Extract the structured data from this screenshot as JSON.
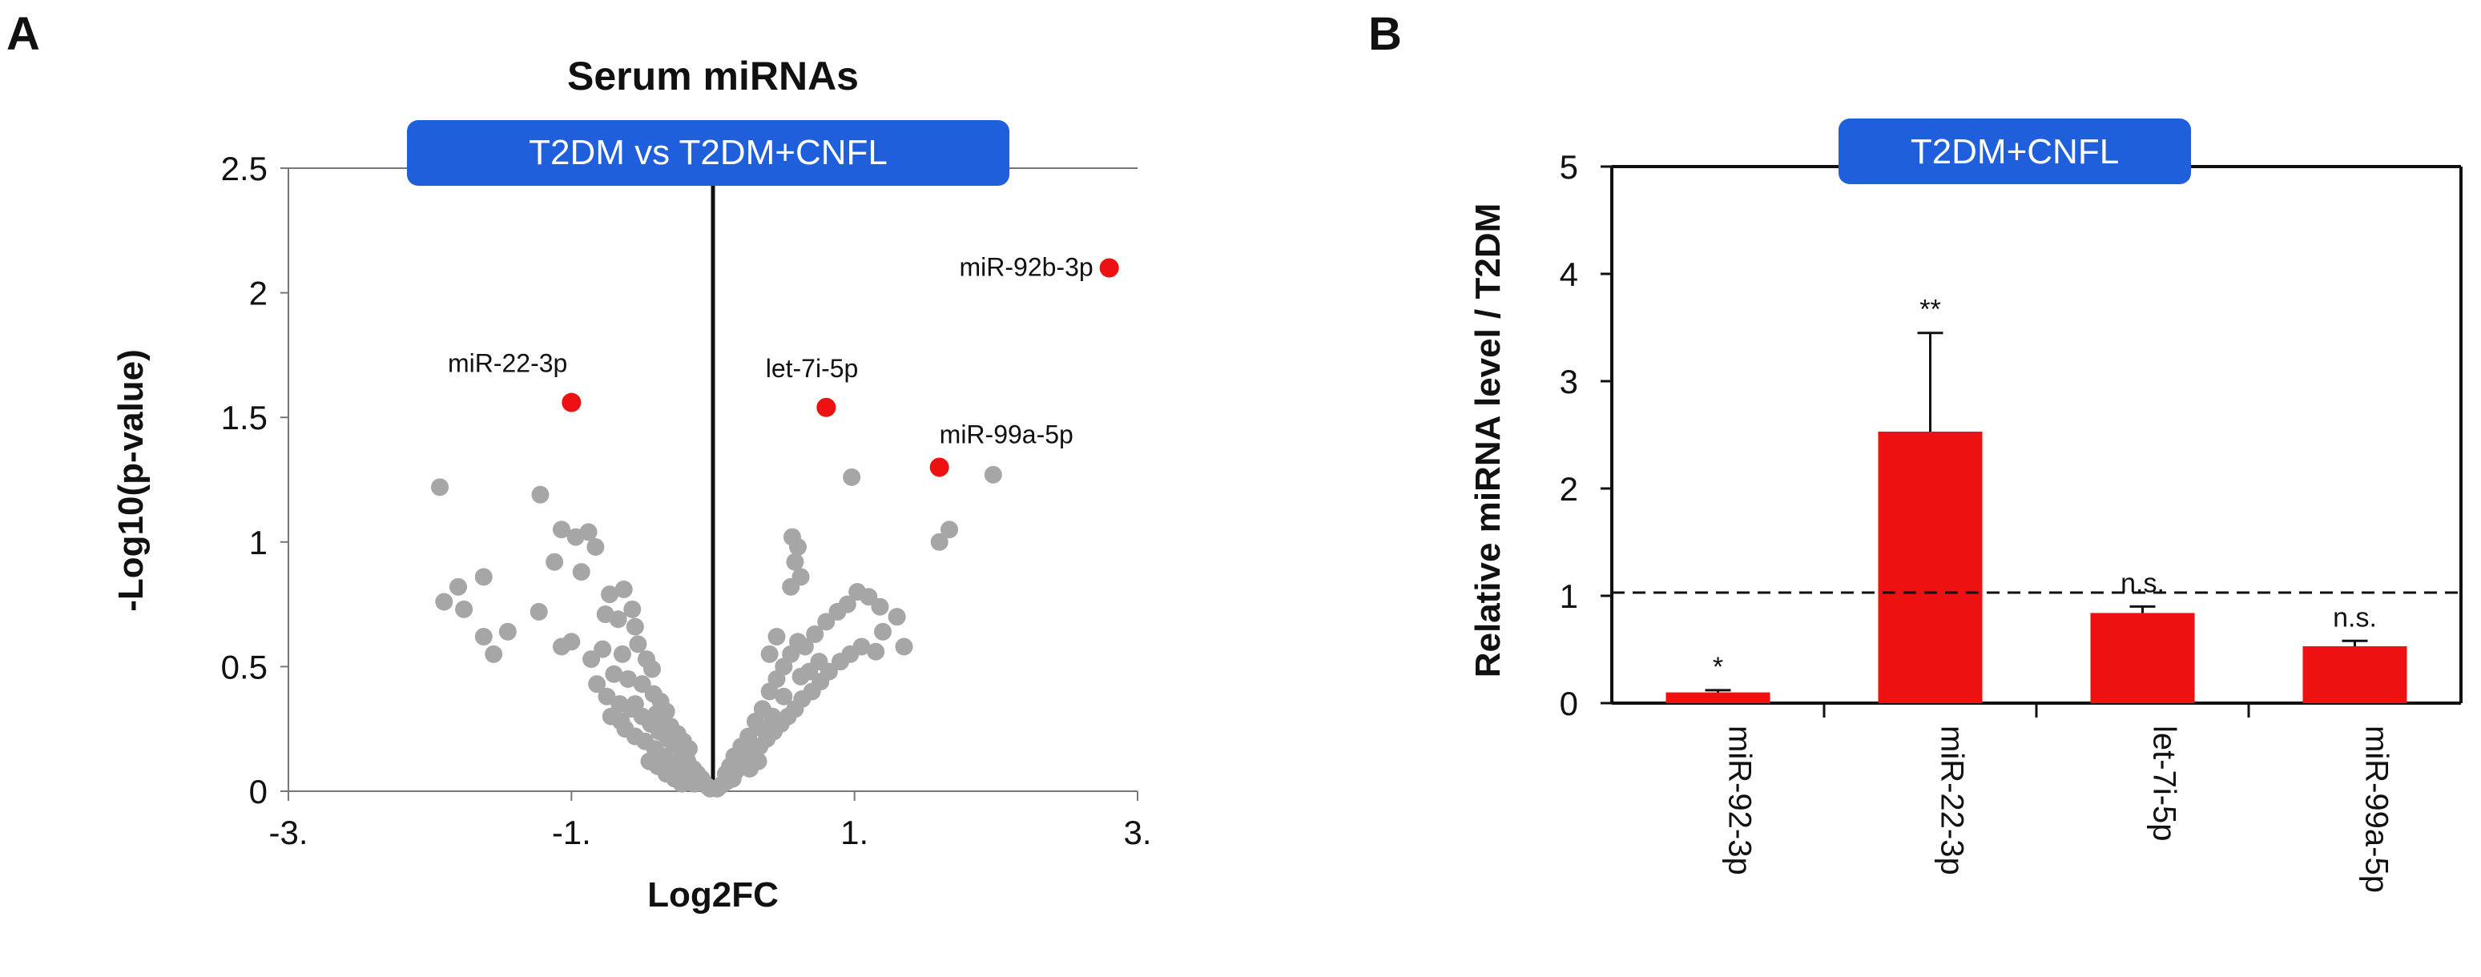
{
  "panel_a_label": "A",
  "panel_b_label": "B",
  "chart_data": [
    {
      "type": "scatter",
      "title": "Serum miRNAs",
      "badge": "T2DM vs T2DM+CNFL",
      "xlabel": "Log2FC",
      "ylabel": "-Log10(p-value)",
      "xlim": [
        -3,
        3
      ],
      "ylim": [
        0,
        2.5
      ],
      "xticks": [
        {
          "value": -3,
          "label": "-3."
        },
        {
          "value": -1,
          "label": "-1."
        },
        {
          "value": 1,
          "label": "1."
        },
        {
          "value": 3,
          "label": "3."
        }
      ],
      "yticks": [
        {
          "value": 0,
          "label": "0"
        },
        {
          "value": 0.5,
          "label": "0.5"
        },
        {
          "value": 1,
          "label": "1"
        },
        {
          "value": 1.5,
          "label": "1.5"
        },
        {
          "value": 2,
          "label": "2"
        },
        {
          "value": 2.5,
          "label": "2.5"
        }
      ],
      "highlight_color": "#ee1111",
      "point_color": "#a6a6a6",
      "highlighted": [
        {
          "name": "miR-92b-3p",
          "x": 2.8,
          "y": 2.1
        },
        {
          "name": "miR-22-3p",
          "x": -1.0,
          "y": 1.56
        },
        {
          "name": "let-7i-5p",
          "x": 0.8,
          "y": 1.54
        },
        {
          "name": "miR-99a-5p",
          "x": 1.6,
          "y": 1.3
        }
      ],
      "points": [
        [
          -1.93,
          1.22
        ],
        [
          -1.22,
          1.19
        ],
        [
          -1.07,
          1.05
        ],
        [
          -0.97,
          1.02
        ],
        [
          -0.88,
          1.04
        ],
        [
          -0.83,
          0.98
        ],
        [
          -1.9,
          0.76
        ],
        [
          -1.76,
          0.73
        ],
        [
          -1.8,
          0.82
        ],
        [
          -1.62,
          0.86
        ],
        [
          -1.12,
          0.92
        ],
        [
          -0.93,
          0.88
        ],
        [
          -0.73,
          0.79
        ],
        [
          -0.63,
          0.81
        ],
        [
          -0.57,
          0.73
        ],
        [
          -0.67,
          0.69
        ],
        [
          -0.76,
          0.71
        ],
        [
          -0.55,
          0.66
        ],
        [
          -1.23,
          0.72
        ],
        [
          -1.45,
          0.64
        ],
        [
          -1.62,
          0.62
        ],
        [
          -1.55,
          0.55
        ],
        [
          -1.0,
          0.6
        ],
        [
          -1.07,
          0.58
        ],
        [
          -0.86,
          0.53
        ],
        [
          -0.78,
          0.57
        ],
        [
          -0.64,
          0.55
        ],
        [
          -0.53,
          0.59
        ],
        [
          -0.47,
          0.53
        ],
        [
          -0.43,
          0.49
        ],
        [
          -0.7,
          0.47
        ],
        [
          -0.6,
          0.45
        ],
        [
          -0.5,
          0.43
        ],
        [
          -0.42,
          0.39
        ],
        [
          -0.37,
          0.36
        ],
        [
          -0.33,
          0.32
        ],
        [
          -0.82,
          0.43
        ],
        [
          -0.75,
          0.38
        ],
        [
          -0.66,
          0.35
        ],
        [
          -0.58,
          0.33
        ],
        [
          -0.5,
          0.3
        ],
        [
          -0.44,
          0.27
        ],
        [
          -0.38,
          0.24
        ],
        [
          -0.32,
          0.21
        ],
        [
          -0.27,
          0.18
        ],
        [
          -0.22,
          0.15
        ],
        [
          -0.18,
          0.12
        ],
        [
          -0.14,
          0.09
        ],
        [
          -0.11,
          0.07
        ],
        [
          -0.08,
          0.05
        ],
        [
          -0.06,
          0.03
        ],
        [
          -0.04,
          0.02
        ],
        [
          -0.02,
          0.01
        ],
        [
          -0.62,
          0.25
        ],
        [
          -0.55,
          0.22
        ],
        [
          -0.48,
          0.2
        ],
        [
          -0.41,
          0.17
        ],
        [
          -0.35,
          0.14
        ],
        [
          -0.29,
          0.11
        ],
        [
          -0.24,
          0.09
        ],
        [
          -0.19,
          0.06
        ],
        [
          -0.16,
          0.04
        ],
        [
          -0.13,
          0.03
        ],
        [
          -0.45,
          0.12
        ],
        [
          -0.39,
          0.1
        ],
        [
          -0.33,
          0.07
        ],
        [
          -0.27,
          0.05
        ],
        [
          -0.22,
          0.03
        ],
        [
          -0.36,
          0.28
        ],
        [
          -0.3,
          0.26
        ],
        [
          -0.25,
          0.23
        ],
        [
          -0.21,
          0.2
        ],
        [
          -0.17,
          0.17
        ],
        [
          -0.72,
          0.3
        ],
        [
          -0.65,
          0.28
        ],
        [
          -0.55,
          0.35
        ],
        [
          -0.4,
          0.31
        ],
        [
          0.03,
          0.01
        ],
        [
          0.05,
          0.02
        ],
        [
          0.07,
          0.03
        ],
        [
          0.1,
          0.04
        ],
        [
          0.13,
          0.06
        ],
        [
          0.16,
          0.08
        ],
        [
          0.2,
          0.1
        ],
        [
          0.24,
          0.12
        ],
        [
          0.28,
          0.15
        ],
        [
          0.33,
          0.18
        ],
        [
          0.38,
          0.21
        ],
        [
          0.43,
          0.24
        ],
        [
          0.48,
          0.27
        ],
        [
          0.53,
          0.3
        ],
        [
          0.58,
          0.33
        ],
        [
          0.63,
          0.37
        ],
        [
          0.7,
          0.4
        ],
        [
          0.76,
          0.44
        ],
        [
          0.82,
          0.48
        ],
        [
          0.9,
          0.52
        ],
        [
          0.97,
          0.55
        ],
        [
          1.05,
          0.58
        ],
        [
          1.15,
          0.56
        ],
        [
          1.2,
          0.64
        ],
        [
          1.35,
          0.58
        ],
        [
          1.18,
          0.74
        ],
        [
          1.1,
          0.78
        ],
        [
          1.3,
          0.7
        ],
        [
          1.02,
          0.8
        ],
        [
          0.95,
          0.75
        ],
        [
          0.88,
          0.72
        ],
        [
          0.8,
          0.68
        ],
        [
          0.72,
          0.63
        ],
        [
          0.65,
          0.58
        ],
        [
          0.6,
          0.6
        ],
        [
          0.55,
          0.55
        ],
        [
          0.5,
          0.5
        ],
        [
          0.45,
          0.45
        ],
        [
          0.4,
          0.4
        ],
        [
          0.35,
          0.33
        ],
        [
          0.3,
          0.28
        ],
        [
          0.25,
          0.22
        ],
        [
          0.2,
          0.18
        ],
        [
          0.15,
          0.14
        ],
        [
          0.12,
          0.1
        ],
        [
          0.09,
          0.07
        ],
        [
          0.62,
          0.86
        ],
        [
          0.58,
          0.92
        ],
        [
          0.56,
          1.02
        ],
        [
          0.6,
          0.98
        ],
        [
          0.55,
          0.82
        ],
        [
          0.45,
          0.62
        ],
        [
          0.4,
          0.55
        ],
        [
          0.5,
          0.38
        ],
        [
          0.42,
          0.3
        ],
        [
          0.35,
          0.25
        ],
        [
          0.68,
          0.48
        ],
        [
          0.75,
          0.52
        ],
        [
          0.62,
          0.46
        ],
        [
          0.3,
          0.16
        ],
        [
          0.22,
          0.14
        ],
        [
          0.18,
          0.12
        ],
        [
          0.26,
          0.09
        ],
        [
          0.32,
          0.12
        ],
        [
          0.14,
          0.05
        ],
        [
          0.98,
          1.26
        ],
        [
          1.98,
          1.27
        ],
        [
          1.67,
          1.05
        ],
        [
          1.6,
          1.0
        ]
      ]
    },
    {
      "type": "bar",
      "badge": "T2DM+CNFL",
      "ylabel": "Relative miRNA level / T2DM",
      "ylim": [
        0,
        5
      ],
      "yticks": [
        {
          "value": 0,
          "label": "0"
        },
        {
          "value": 1,
          "label": "1"
        },
        {
          "value": 2,
          "label": "2"
        },
        {
          "value": 3,
          "label": "3"
        },
        {
          "value": 4,
          "label": "4"
        },
        {
          "value": 5,
          "label": "5"
        }
      ],
      "reference_line": 1.03,
      "bar_color": "#ee1111",
      "categories": [
        "miR-92-3p",
        "miR-22-3p",
        "let-7i-5p",
        "miR-99a-5p"
      ],
      "values": [
        0.1,
        2.53,
        0.84,
        0.53
      ],
      "errors": [
        0.02,
        0.92,
        0.06,
        0.05
      ],
      "significance": [
        "*",
        "**",
        "n.s.",
        "n.s."
      ]
    }
  ]
}
